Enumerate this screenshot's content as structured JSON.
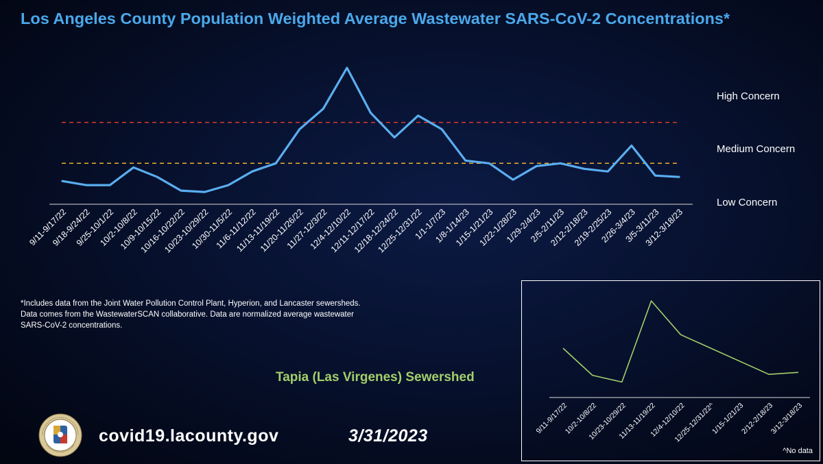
{
  "title": "Los Angeles County Population Weighted Average Wastewater SARS-CoV-2 Concentrations*",
  "concern_labels": {
    "high": "High Concern",
    "medium": "Medium Concern",
    "low": "Low Concern"
  },
  "footnote": {
    "line1": "*Includes data from the Joint Water Pollution Control Plant, Hyperion, and Lancaster sewersheds.",
    "line2": "Data comes from the WastewaterSCAN collaborative. Data are normalized average wastewater",
    "line3": "SARS-CoV-2 concentrations."
  },
  "inset": {
    "title": "Tapia (Las Virgenes) Sewershed",
    "note": "^No data"
  },
  "footer": {
    "website": "covid19.lacounty.gov",
    "date": "3/31/2023"
  },
  "seal": {
    "top_text": "COUNTY OF LOS ANGELES",
    "bottom_text": "CALIFORNIA"
  },
  "colors": {
    "title": "#4aa8ea",
    "main_line": "#5aaef0",
    "high_threshold": "#e0392b",
    "medium_threshold": "#f0b02c",
    "inset_line": "#a3cf6a"
  },
  "chart_data": [
    {
      "type": "line",
      "title": "Los Angeles County Population Weighted Average Wastewater SARS-CoV-2 Concentrations*",
      "categories": [
        "9/11-9/17/22",
        "9/18-9/24/22",
        "9/25-10/1/22",
        "10/2-10/8/22",
        "10/9-10/15/22",
        "10/16-10/22/22",
        "10/23-10/29/22",
        "10/30-11/5/22",
        "11/6-11/12/22",
        "11/13-11/19/22",
        "11/20-11/26/22",
        "11/27-12/3/22",
        "12/4-12/10/22",
        "12/11-12/17/22",
        "12/18-12/24/22",
        "12/25-12/31/22",
        "1/1-1/7/23",
        "1/8-1/14/23",
        "1/15-1/21/23",
        "1/22-1/28/23",
        "1/29-2/4/23",
        "2/5-2/11/23",
        "2/12-2/18/23",
        "2/19-2/25/23",
        "2/26-3/4/23",
        "3/5-3/11/23",
        "3/12-3/18/23"
      ],
      "values": [
        17,
        14,
        14,
        27,
        20,
        10,
        9,
        14,
        24,
        30,
        55,
        70,
        100,
        67,
        49,
        65,
        55,
        32,
        30,
        18,
        28,
        30,
        26,
        24,
        43,
        21,
        20
      ],
      "thresholds": {
        "high": 60,
        "medium": 30
      },
      "ylim": [
        0,
        102
      ],
      "grid": false,
      "xlabel": "",
      "ylabel": ""
    },
    {
      "type": "line",
      "title": "Tapia (Las Virgenes) Sewershed",
      "categories": [
        "9/11-9/17/22",
        "10/2-10/8/22",
        "10/23-10/29/22",
        "11/13-11/19/22",
        "12/4-12/10/22",
        "12/25-12/31/22^",
        "1/15-1/21/23",
        "2/12-2/18/23",
        "3/12-3/18/23"
      ],
      "values": [
        51,
        23,
        16,
        100,
        65,
        null,
        null,
        24,
        26
      ],
      "connect_gaps": true,
      "ylim": [
        0,
        100
      ],
      "grid": false,
      "xlabel": "",
      "ylabel": ""
    }
  ]
}
